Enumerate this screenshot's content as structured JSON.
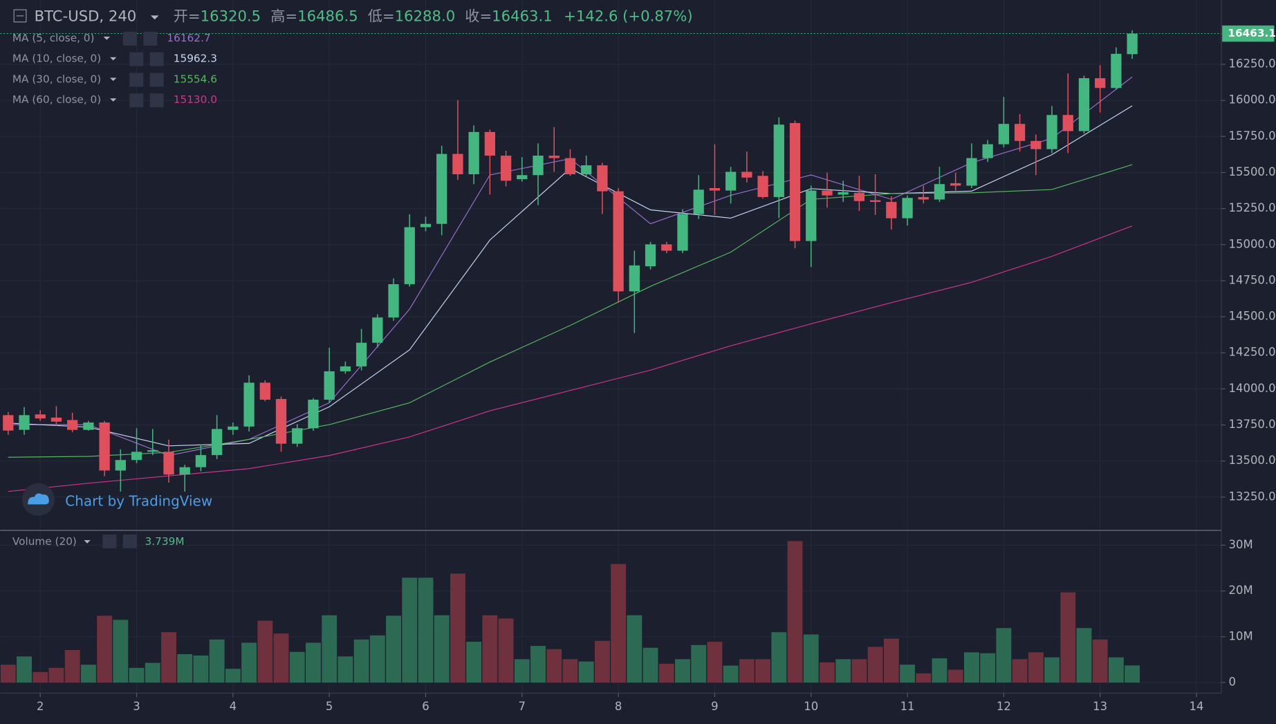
{
  "chart_data": [
    {
      "type": "candlestick",
      "title": "BTC-USD, 240",
      "ohlc_labels": [
        "开=",
        "高=",
        "低=",
        "收="
      ],
      "change_label": "+142.6 (+0.87%)",
      "watermark": "Chart by TradingView",
      "up_color": "#43b77f",
      "down_color": "#e04f5c",
      "x": [
        40,
        44,
        48,
        52,
        56,
        60,
        64,
        68,
        72,
        76,
        80,
        84,
        88,
        92,
        96,
        100,
        104,
        108,
        112,
        116,
        120,
        124,
        128,
        132,
        136,
        140,
        144,
        148,
        152,
        156,
        160,
        164,
        168,
        172,
        176,
        180,
        184,
        188,
        192,
        196,
        200,
        204,
        208,
        212,
        216,
        220,
        224,
        228,
        232,
        236,
        240,
        244,
        248,
        252,
        256,
        260,
        264,
        268,
        272,
        276,
        280,
        284,
        288,
        292,
        296,
        300,
        304,
        308,
        312,
        316,
        320
      ],
      "open": [
        13818,
        13716,
        13823,
        13801,
        13784,
        13716,
        13767,
        13434,
        13507,
        13564,
        13564,
        13406,
        13457,
        13541,
        13716,
        13739,
        14043,
        13930,
        13620,
        13727,
        13925,
        14122,
        14156,
        14320,
        14495,
        14726,
        15121,
        15144,
        15629,
        15488,
        15781,
        15617,
        15454,
        15482,
        15617,
        15600,
        15488,
        15550,
        15370,
        14676,
        14850,
        15002,
        14958,
        15212,
        15392,
        15375,
        15505,
        15477,
        15330,
        15843,
        15025,
        15375,
        15347,
        15358,
        15308,
        15296,
        15183,
        15330,
        15313,
        15426,
        15409,
        15600,
        15696,
        15837,
        15719,
        15662,
        15899,
        15787,
        16154,
        16086,
        16320.5
      ],
      "high": [
        13840,
        13874,
        13852,
        13880,
        13835,
        13778,
        13778,
        13581,
        13727,
        13722,
        13648,
        13474,
        13615,
        13818,
        13767,
        14094,
        14060,
        13947,
        13756,
        13936,
        14286,
        14190,
        14416,
        14517,
        14766,
        15211,
        15194,
        15685,
        16002,
        15827,
        15798,
        15651,
        15606,
        15702,
        15815,
        15662,
        15617,
        15567,
        15392,
        14958,
        15019,
        15019,
        15245,
        15482,
        15696,
        15539,
        15646,
        15510,
        15883,
        15860,
        15409,
        15499,
        15443,
        15477,
        15488,
        15336,
        15341,
        15409,
        15539,
        15499,
        15702,
        15725,
        16024,
        15905,
        15764,
        15961,
        16187,
        16171,
        16244,
        16368,
        16486.5
      ],
      "low": [
        13682,
        13682,
        13778,
        13744,
        13699,
        13710,
        13395,
        13288,
        13485,
        13541,
        13350,
        13288,
        13429,
        13513,
        13682,
        13705,
        13914,
        13564,
        13598,
        13710,
        13902,
        14105,
        14128,
        14286,
        14472,
        14709,
        15093,
        15065,
        15449,
        15420,
        15347,
        15403,
        15437,
        15274,
        15505,
        15477,
        15471,
        15212,
        14597,
        14387,
        14828,
        14941,
        14941,
        15178,
        15206,
        15285,
        15431,
        15319,
        15184,
        14975,
        14845,
        15257,
        15296,
        15234,
        15206,
        15104,
        15132,
        15285,
        15296,
        15375,
        15392,
        15573,
        15674,
        15646,
        15482,
        15634,
        15634,
        15770,
        15916,
        16075,
        16288
      ],
      "low_value_labels": [
        null,
        null,
        null,
        null,
        null,
        null,
        null,
        null,
        null,
        null,
        null,
        null,
        null,
        null,
        null,
        null,
        null,
        null,
        null,
        null,
        null,
        null,
        null,
        null,
        null,
        null,
        null,
        null,
        null,
        null,
        null,
        null,
        null,
        null,
        null,
        null,
        null,
        null,
        null,
        null,
        null,
        null,
        null,
        null,
        null,
        null,
        null,
        null,
        null,
        null,
        null,
        null,
        null,
        null,
        null,
        null,
        null,
        null,
        null,
        null,
        null,
        null,
        null,
        null,
        null,
        null,
        null,
        null,
        null,
        null,
        "16288.0"
      ],
      "close": [
        13711,
        13818,
        13795,
        13773,
        13716,
        13767,
        13434,
        13507,
        13564,
        13575,
        13406,
        13457,
        13541,
        13722,
        13739,
        14043,
        13925,
        13620,
        13727,
        13925,
        14122,
        14156,
        14320,
        14495,
        14726,
        15121,
        15144,
        15629,
        15488,
        15781,
        15617,
        15443,
        15482,
        15617,
        15600,
        15488,
        15550,
        15370,
        14676,
        14856,
        15002,
        14958,
        15212,
        15381,
        15375,
        15505,
        15465,
        15330,
        15832,
        15025,
        15375,
        15341,
        15364,
        15302,
        15296,
        15183,
        15324,
        15313,
        15420,
        15409,
        15600,
        15696,
        15837,
        15719,
        15662,
        15899,
        15787,
        16154,
        16086,
        16323,
        16463.1
      ],
      "ma": [
        {
          "name": "MA (5, close, 0)",
          "color": "#9a6fd0",
          "x": [
            40,
            60,
            80,
            100,
            120,
            140,
            160,
            180,
            200,
            220,
            240,
            260,
            280,
            300,
            320
          ],
          "values": [
            13752,
            13752,
            13538,
            13650,
            13904,
            14553,
            15483,
            15596,
            15145,
            15342,
            15483,
            15314,
            15568,
            15737,
            16162.7
          ]
        },
        {
          "name": "MA (10, close, 0)",
          "color": "#c9d6f2",
          "x": [
            40,
            60,
            80,
            100,
            120,
            140,
            160,
            180,
            200,
            220,
            240,
            260,
            280,
            300,
            320
          ],
          "values": [
            13763,
            13735,
            13605,
            13622,
            13876,
            14271,
            15032,
            15528,
            15241,
            15184,
            15388,
            15354,
            15371,
            15624,
            15962.3
          ]
        },
        {
          "name": "MA (30, close, 0)",
          "color": "#55b85e",
          "x": [
            40,
            60,
            80,
            100,
            120,
            140,
            160,
            180,
            200,
            220,
            240,
            260,
            280,
            300,
            320
          ],
          "values": [
            13526,
            13532,
            13560,
            13650,
            13752,
            13904,
            14186,
            14440,
            14711,
            14948,
            15314,
            15354,
            15359,
            15382,
            15554.6
          ]
        },
        {
          "name": "MA (60, close, 0)",
          "color": "#d0358a",
          "x": [
            40,
            60,
            80,
            100,
            120,
            140,
            160,
            180,
            200,
            220,
            240,
            260,
            280,
            300,
            320
          ],
          "values": [
            13289,
            13346,
            13397,
            13447,
            13538,
            13667,
            13848,
            13989,
            14130,
            14299,
            14451,
            14598,
            14739,
            14919,
            15130
          ],
          "value_labels": [
            null,
            null,
            null,
            null,
            null,
            null,
            null,
            null,
            null,
            null,
            null,
            null,
            null,
            null,
            "15130.0"
          ]
        }
      ],
      "xlim": [
        38,
        342
      ],
      "xticks": [
        {
          "value": 48,
          "label": "2"
        },
        {
          "value": 72,
          "label": "3"
        },
        {
          "value": 96,
          "label": "4"
        },
        {
          "value": 120,
          "label": "5"
        },
        {
          "value": 144,
          "label": "6"
        },
        {
          "value": 168,
          "label": "7"
        },
        {
          "value": 192,
          "label": "8"
        },
        {
          "value": 216,
          "label": "9"
        },
        {
          "value": 240,
          "label": "10"
        },
        {
          "value": 264,
          "label": "11"
        },
        {
          "value": 288,
          "label": "12"
        },
        {
          "value": 312,
          "label": "13"
        },
        {
          "value": 336,
          "label": "14"
        }
      ],
      "ylim": [
        13019,
        16696
      ],
      "yticks": [
        {
          "value": 13250,
          "label": "13250.0"
        },
        {
          "value": 13500,
          "label": "13500.0"
        },
        {
          "value": 13750,
          "label": "13750.0"
        },
        {
          "value": 14000,
          "label": "14000.0"
        },
        {
          "value": 14250,
          "label": "14250.0"
        },
        {
          "value": 14500,
          "label": "14500.0"
        },
        {
          "value": 14750,
          "label": "14750.0"
        },
        {
          "value": 15000,
          "label": "15000.0"
        },
        {
          "value": 15250,
          "label": "15250.0"
        },
        {
          "value": 15500,
          "label": "15500.0"
        },
        {
          "value": 15750,
          "label": "15750.0"
        },
        {
          "value": 16000,
          "label": "16000.0"
        },
        {
          "value": 16250,
          "label": "16250.0"
        }
      ],
      "grid": true
    },
    {
      "type": "bar",
      "title": "Volume (20)",
      "up_color": "#2d6a53",
      "down_color": "#70313e",
      "x": [
        40,
        44,
        48,
        52,
        56,
        60,
        64,
        68,
        72,
        76,
        80,
        84,
        88,
        92,
        96,
        100,
        104,
        108,
        112,
        116,
        120,
        124,
        128,
        132,
        136,
        140,
        144,
        148,
        152,
        156,
        160,
        164,
        168,
        172,
        176,
        180,
        184,
        188,
        192,
        196,
        200,
        204,
        208,
        212,
        216,
        220,
        224,
        228,
        232,
        236,
        240,
        244,
        248,
        252,
        256,
        260,
        264,
        268,
        272,
        276,
        280,
        284,
        288,
        292,
        296,
        300,
        304,
        308,
        312,
        316,
        320
      ],
      "values": [
        3900000,
        5700000,
        2300000,
        3200000,
        7100000,
        3900000,
        14600000,
        13700000,
        3200000,
        4300000,
        11000000,
        6200000,
        5900000,
        9400000,
        3000000,
        8700000,
        13500000,
        10700000,
        6700000,
        8700000,
        14700000,
        5700000,
        9400000,
        10300000,
        14600000,
        22900000,
        22900000,
        14700000,
        23800000,
        8900000,
        14700000,
        14000000,
        5100000,
        8000000,
        7300000,
        5100000,
        4600000,
        9100000,
        25900000,
        14700000,
        7600000,
        4100000,
        5100000,
        8200000,
        8900000,
        3700000,
        5100000,
        5100000,
        11000000,
        30900000,
        10500000,
        4400000,
        5100000,
        5100000,
        7800000,
        9600000,
        3900000,
        2000000,
        5300000,
        2800000,
        6600000,
        6400000,
        11900000,
        5100000,
        6600000,
        5500000,
        19700000,
        11900000,
        9400000,
        5500000,
        3739000
      ],
      "value_labels": [
        null,
        null,
        null,
        null,
        null,
        null,
        null,
        null,
        null,
        null,
        null,
        null,
        null,
        null,
        null,
        null,
        null,
        null,
        null,
        null,
        null,
        null,
        null,
        null,
        null,
        null,
        null,
        null,
        null,
        null,
        null,
        null,
        null,
        null,
        null,
        null,
        null,
        null,
        null,
        null,
        null,
        null,
        null,
        null,
        null,
        null,
        null,
        null,
        null,
        null,
        null,
        null,
        null,
        null,
        null,
        null,
        null,
        null,
        null,
        null,
        null,
        null,
        null,
        null,
        null,
        null,
        null,
        null,
        null,
        null,
        "3.739M"
      ],
      "ylim": [
        -1950000,
        32700000
      ],
      "yticks": [
        0,
        {
          "value": 10000000,
          "label": "10M"
        },
        {
          "value": 20000000,
          "label": "20M"
        },
        {
          "value": 30000000,
          "label": "30M"
        }
      ]
    }
  ]
}
